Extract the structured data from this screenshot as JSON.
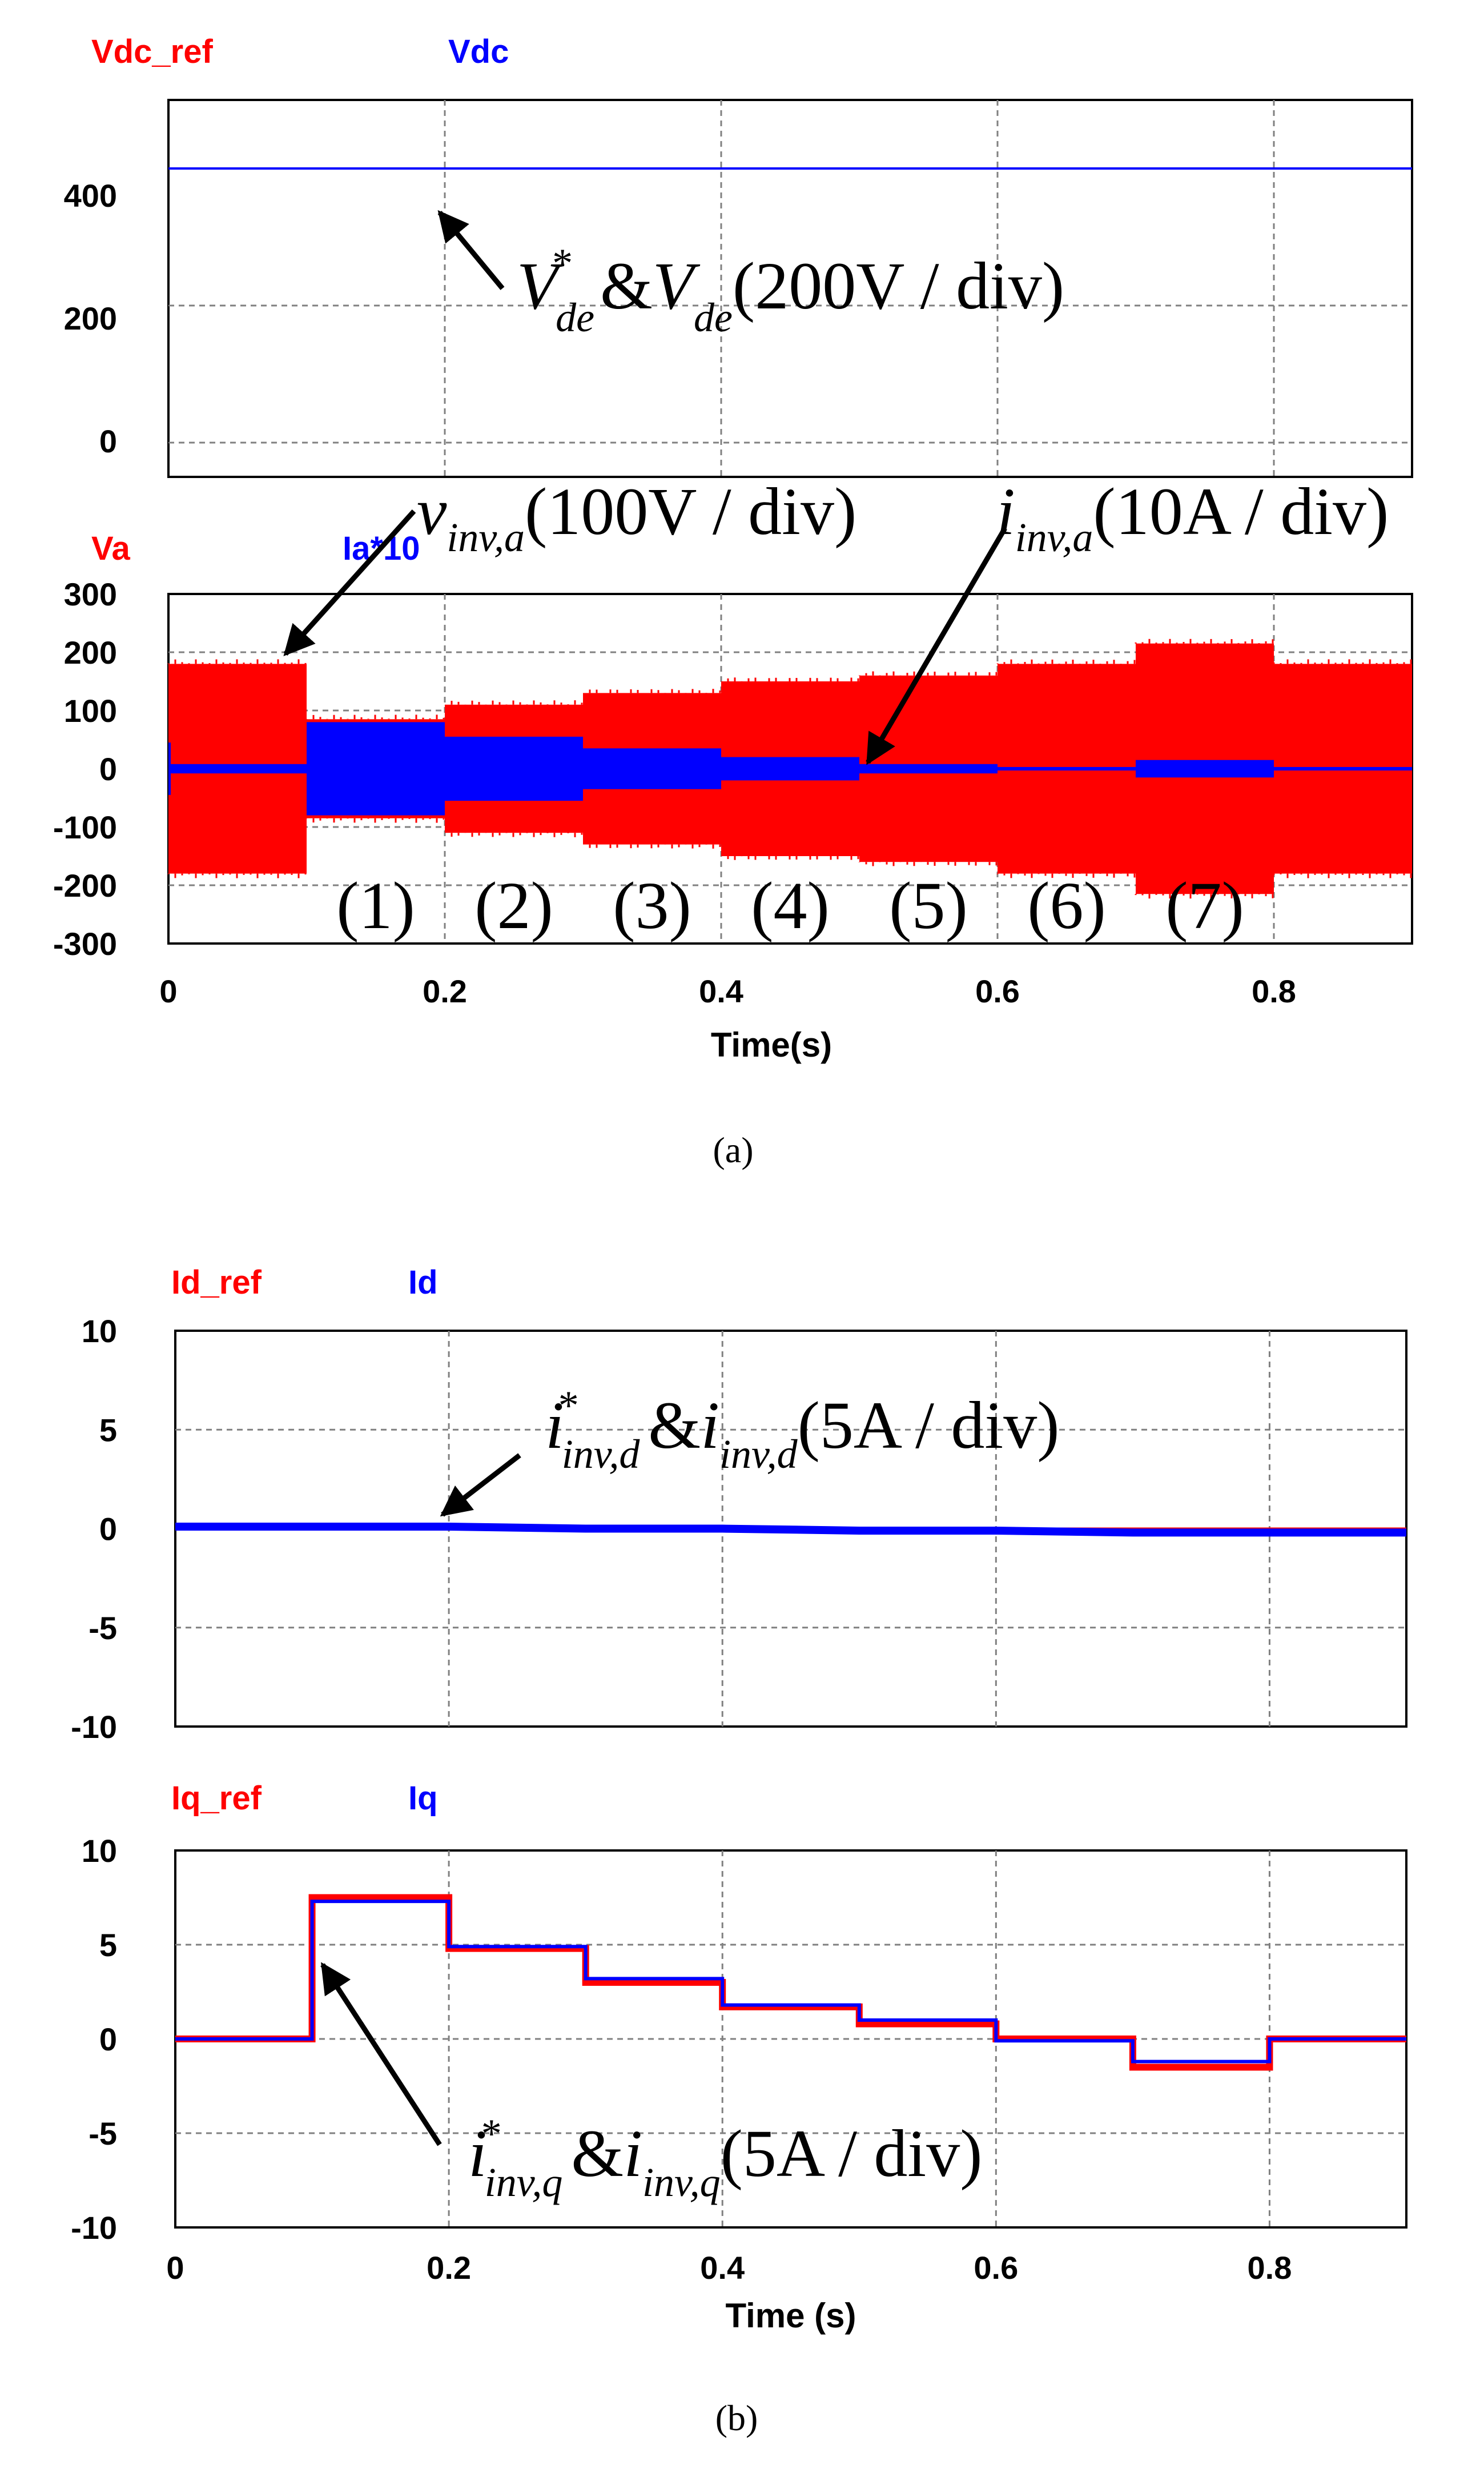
{
  "colors": {
    "red": "#ff0000",
    "blue": "#0000ff",
    "grid": "#808080",
    "frame": "#000000"
  },
  "chart_data": [
    {
      "panel": "a-top",
      "type": "line",
      "legend": [
        "Vdc_ref",
        "Vdc"
      ],
      "yticks": [
        "400",
        "200",
        "0"
      ],
      "ylim": [
        -50,
        500
      ],
      "xlim": [
        0,
        0.9
      ],
      "series": [
        {
          "name": "Vdc_ref",
          "color": "red",
          "x": [
            0,
            0.9
          ],
          "y": [
            400,
            400
          ]
        },
        {
          "name": "Vdc",
          "color": "blue",
          "x": [
            0,
            0.9
          ],
          "y": [
            400,
            400
          ]
        }
      ],
      "annotation": {
        "main": "V",
        "sup": "*",
        "sub": "de",
        "amp": "&",
        "main2": "V",
        "sub2": "de",
        "scale": "(200V / div)",
        "target": [
          0.2,
          400
        ]
      }
    },
    {
      "panel": "a-bottom",
      "type": "area",
      "legend": [
        "Va",
        "Ia*10"
      ],
      "yticks": [
        "300",
        "200",
        "100",
        "0",
        "-100",
        "-200",
        "-300"
      ],
      "ylim": [
        -300,
        300
      ],
      "xlim": [
        0,
        0.9
      ],
      "xticks": [
        "0",
        "0.2",
        "0.4",
        "0.6",
        "0.8"
      ],
      "xlabel": "Time(s)",
      "segments": [
        "(1)",
        "(2)",
        "(3)",
        "(4)",
        "(5)",
        "(6)",
        "(7)"
      ],
      "va_envelope": {
        "t": [
          0,
          0.1,
          0.2,
          0.3,
          0.4,
          0.5,
          0.6,
          0.7,
          0.8,
          0.9
        ],
        "amp": [
          180,
          85,
          110,
          130,
          150,
          160,
          180,
          215,
          180
        ]
      },
      "ia_envelope": {
        "t": [
          0,
          0.1,
          0.2,
          0.3,
          0.4,
          0.5,
          0.6,
          0.7,
          0.8,
          0.9
        ],
        "amp": [
          8,
          80,
          55,
          35,
          20,
          8,
          3,
          15,
          3
        ]
      },
      "annotations": [
        {
          "main": "v",
          "sub": "inv,a",
          "scale": "(100V / div)",
          "target": [
            0.085,
            190
          ]
        },
        {
          "main": "i",
          "sub": "inv,a",
          "scale": "(10A / div)",
          "target": [
            0.5,
            0
          ]
        }
      ]
    },
    {
      "panel": "b-top",
      "type": "line",
      "legend": [
        "Id_ref",
        "Id"
      ],
      "yticks": [
        "10",
        "5",
        "0",
        "-5",
        "-10"
      ],
      "ylim": [
        -10,
        10
      ],
      "xlim": [
        0,
        0.9
      ],
      "series": [
        {
          "name": "Id_ref",
          "color": "red",
          "x": [
            0,
            0.9
          ],
          "y": [
            0,
            0
          ]
        },
        {
          "name": "Id",
          "color": "blue",
          "x": [
            0,
            0.1,
            0.2,
            0.3,
            0.4,
            0.5,
            0.6,
            0.7,
            0.8,
            0.9
          ],
          "y": [
            0.1,
            0.1,
            0.1,
            0.0,
            0.0,
            -0.1,
            -0.1,
            -0.2,
            -0.2,
            -0.2
          ]
        }
      ],
      "annotation": {
        "main": "i",
        "sup": "*",
        "sub": "inv,d",
        "amp": "&",
        "main2": "i",
        "sub2": "inv,d",
        "scale": "(5A / div)",
        "target": [
          0.2,
          0
        ]
      }
    },
    {
      "panel": "b-bottom",
      "type": "line",
      "legend": [
        "Iq_ref",
        "Iq"
      ],
      "yticks": [
        "10",
        "5",
        "0",
        "-5",
        "-10"
      ],
      "ylim": [
        -10,
        10
      ],
      "xlim": [
        0,
        0.9
      ],
      "xticks": [
        "0",
        "0.2",
        "0.4",
        "0.6",
        "0.8"
      ],
      "xlabel": "Time (s)",
      "series": [
        {
          "name": "Iq_ref",
          "color": "red",
          "steps_t": [
            0,
            0.1,
            0.2,
            0.3,
            0.4,
            0.5,
            0.6,
            0.7,
            0.8,
            0.9
          ],
          "steps_y": [
            0,
            7.5,
            4.8,
            3.0,
            1.7,
            0.8,
            0,
            -1.5,
            0
          ]
        },
        {
          "name": "Iq",
          "color": "blue",
          "steps_t": [
            0,
            0.1,
            0.2,
            0.3,
            0.4,
            0.5,
            0.6,
            0.7,
            0.8,
            0.9
          ],
          "steps_y": [
            0,
            7.3,
            4.9,
            3.2,
            1.8,
            1.0,
            -0.1,
            -1.2,
            0
          ]
        }
      ],
      "annotation": {
        "main": "i",
        "sup": "*",
        "sub": "inv,q",
        "amp": "&",
        "main2": "i",
        "sub2": "inv,q",
        "scale": "(5A / div)",
        "target": [
          0.11,
          7.3
        ]
      }
    }
  ],
  "captions": [
    "(a)",
    "(b)"
  ]
}
